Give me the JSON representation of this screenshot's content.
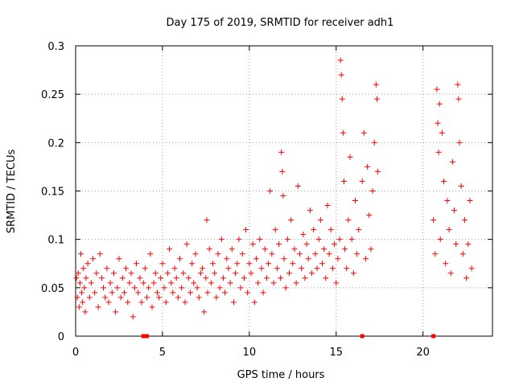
{
  "chart_data": {
    "type": "scatter",
    "title": "Day 175 of 2019, SRMTID for receiver adh1",
    "xlabel": "GPS time / hours",
    "ylabel": "SRMTID / TECUs",
    "xlim": [
      0,
      24
    ],
    "ylim": [
      0,
      0.3
    ],
    "xticks": [
      0,
      5,
      10,
      15,
      20
    ],
    "xtick_labels": [
      "0",
      "5",
      "10",
      "15",
      "20"
    ],
    "yticks": [
      0,
      0.05,
      0.1,
      0.15,
      0.2,
      0.25,
      0.3
    ],
    "ytick_labels": [
      "0",
      "0.05",
      "0.1",
      "0.15",
      "0.2",
      "0.25",
      "0.3"
    ],
    "grid": true,
    "marker": "+",
    "color": "#ff0000",
    "series": [
      {
        "name": "adh1",
        "points": [
          [
            0.05,
            0.06
          ],
          [
            0.1,
            0.04
          ],
          [
            0.15,
            0.065
          ],
          [
            0.2,
            0.03
          ],
          [
            0.25,
            0.055
          ],
          [
            0.3,
            0.085
          ],
          [
            0.35,
            0.045
          ],
          [
            0.4,
            0.035
          ],
          [
            0.45,
            0.07
          ],
          [
            0.5,
            0.05
          ],
          [
            0.55,
            0.025
          ],
          [
            0.6,
            0.06
          ],
          [
            0.7,
            0.075
          ],
          [
            0.8,
            0.04
          ],
          [
            0.9,
            0.055
          ],
          [
            1.0,
            0.08
          ],
          [
            1.1,
            0.045
          ],
          [
            1.2,
            0.065
          ],
          [
            1.3,
            0.03
          ],
          [
            1.4,
            0.085
          ],
          [
            1.5,
            0.06
          ],
          [
            1.6,
            0.05
          ],
          [
            1.7,
            0.04
          ],
          [
            1.8,
            0.07
          ],
          [
            1.9,
            0.035
          ],
          [
            2.0,
            0.055
          ],
          [
            2.1,
            0.045
          ],
          [
            2.2,
            0.065
          ],
          [
            2.3,
            0.025
          ],
          [
            2.4,
            0.05
          ],
          [
            2.5,
            0.08
          ],
          [
            2.6,
            0.04
          ],
          [
            2.7,
            0.06
          ],
          [
            2.8,
            0.045
          ],
          [
            2.9,
            0.07
          ],
          [
            3.0,
            0.035
          ],
          [
            3.1,
            0.055
          ],
          [
            3.2,
            0.065
          ],
          [
            3.3,
            0.02
          ],
          [
            3.4,
            0.05
          ],
          [
            3.5,
            0.075
          ],
          [
            3.6,
            0.045
          ],
          [
            3.7,
            0.06
          ],
          [
            3.8,
            0.035
          ],
          [
            3.9,
            0.055
          ],
          [
            4.0,
            0.07
          ],
          [
            4.1,
            0.04
          ],
          [
            4.2,
            0.05
          ],
          [
            4.3,
            0.085
          ],
          [
            4.4,
            0.03
          ],
          [
            4.5,
            0.055
          ],
          [
            4.6,
            0.065
          ],
          [
            4.7,
            0.045
          ],
          [
            4.8,
            0.04
          ],
          [
            4.9,
            0.06
          ],
          [
            5.0,
            0.075
          ],
          [
            5.1,
            0.05
          ],
          [
            5.2,
            0.035
          ],
          [
            5.3,
            0.065
          ],
          [
            5.4,
            0.09
          ],
          [
            5.5,
            0.055
          ],
          [
            5.6,
            0.045
          ],
          [
            5.7,
            0.07
          ],
          [
            5.8,
            0.06
          ],
          [
            5.9,
            0.04
          ],
          [
            6.0,
            0.08
          ],
          [
            6.1,
            0.05
          ],
          [
            6.2,
            0.065
          ],
          [
            6.3,
            0.035
          ],
          [
            6.4,
            0.095
          ],
          [
            6.5,
            0.06
          ],
          [
            6.6,
            0.045
          ],
          [
            6.7,
            0.075
          ],
          [
            6.8,
            0.055
          ],
          [
            6.9,
            0.085
          ],
          [
            7.0,
            0.05
          ],
          [
            7.1,
            0.04
          ],
          [
            7.2,
            0.065
          ],
          [
            7.3,
            0.07
          ],
          [
            7.4,
            0.025
          ],
          [
            7.5,
            0.06
          ],
          [
            7.55,
            0.12
          ],
          [
            7.6,
            0.045
          ],
          [
            7.7,
            0.09
          ],
          [
            7.8,
            0.055
          ],
          [
            7.9,
            0.075
          ],
          [
            8.0,
            0.065
          ],
          [
            8.1,
            0.04
          ],
          [
            8.2,
            0.085
          ],
          [
            8.3,
            0.05
          ],
          [
            8.4,
            0.1
          ],
          [
            8.5,
            0.06
          ],
          [
            8.6,
            0.045
          ],
          [
            8.7,
            0.08
          ],
          [
            8.8,
            0.07
          ],
          [
            8.9,
            0.055
          ],
          [
            9.0,
            0.09
          ],
          [
            9.1,
            0.035
          ],
          [
            9.2,
            0.065
          ],
          [
            9.3,
            0.075
          ],
          [
            9.4,
            0.1
          ],
          [
            9.5,
            0.05
          ],
          [
            9.6,
            0.085
          ],
          [
            9.7,
            0.06
          ],
          [
            9.8,
            0.11
          ],
          [
            9.9,
            0.045
          ],
          [
            10.0,
            0.075
          ],
          [
            10.1,
            0.065
          ],
          [
            10.2,
            0.095
          ],
          [
            10.3,
            0.035
          ],
          [
            10.4,
            0.08
          ],
          [
            10.5,
            0.055
          ],
          [
            10.6,
            0.1
          ],
          [
            10.7,
            0.07
          ],
          [
            10.8,
            0.045
          ],
          [
            10.9,
            0.09
          ],
          [
            11.0,
            0.06
          ],
          [
            11.1,
            0.075
          ],
          [
            11.2,
            0.15
          ],
          [
            11.3,
            0.085
          ],
          [
            11.4,
            0.055
          ],
          [
            11.5,
            0.11
          ],
          [
            11.6,
            0.07
          ],
          [
            11.7,
            0.095
          ],
          [
            11.8,
            0.06
          ],
          [
            11.85,
            0.19
          ],
          [
            11.9,
            0.17
          ],
          [
            11.95,
            0.145
          ],
          [
            12.0,
            0.08
          ],
          [
            12.1,
            0.05
          ],
          [
            12.2,
            0.1
          ],
          [
            12.3,
            0.065
          ],
          [
            12.4,
            0.12
          ],
          [
            12.5,
            0.075
          ],
          [
            12.6,
            0.09
          ],
          [
            12.7,
            0.055
          ],
          [
            12.8,
            0.155
          ],
          [
            12.9,
            0.085
          ],
          [
            13.0,
            0.07
          ],
          [
            13.1,
            0.105
          ],
          [
            13.2,
            0.06
          ],
          [
            13.3,
            0.095
          ],
          [
            13.4,
            0.08
          ],
          [
            13.5,
            0.13
          ],
          [
            13.6,
            0.065
          ],
          [
            13.7,
            0.11
          ],
          [
            13.8,
            0.085
          ],
          [
            13.9,
            0.07
          ],
          [
            14.0,
            0.1
          ],
          [
            14.1,
            0.12
          ],
          [
            14.2,
            0.075
          ],
          [
            14.3,
            0.09
          ],
          [
            14.4,
            0.06
          ],
          [
            14.5,
            0.135
          ],
          [
            14.6,
            0.085
          ],
          [
            14.7,
            0.11
          ],
          [
            14.8,
            0.07
          ],
          [
            14.9,
            0.095
          ],
          [
            15.0,
            0.055
          ],
          [
            15.1,
            0.08
          ],
          [
            15.2,
            0.1
          ],
          [
            15.25,
            0.285
          ],
          [
            15.3,
            0.27
          ],
          [
            15.35,
            0.245
          ],
          [
            15.4,
            0.21
          ],
          [
            15.45,
            0.16
          ],
          [
            15.5,
            0.09
          ],
          [
            15.6,
            0.07
          ],
          [
            15.7,
            0.12
          ],
          [
            15.8,
            0.185
          ],
          [
            15.9,
            0.1
          ],
          [
            16.0,
            0.065
          ],
          [
            16.1,
            0.14
          ],
          [
            16.2,
            0.085
          ],
          [
            16.3,
            0.11
          ],
          [
            16.5,
            0.16
          ],
          [
            16.6,
            0.21
          ],
          [
            16.7,
            0.08
          ],
          [
            16.8,
            0.175
          ],
          [
            16.9,
            0.125
          ],
          [
            17.0,
            0.09
          ],
          [
            17.1,
            0.15
          ],
          [
            17.2,
            0.2
          ],
          [
            17.3,
            0.26
          ],
          [
            17.35,
            0.245
          ],
          [
            17.4,
            0.17
          ],
          [
            20.6,
            0.12
          ],
          [
            20.7,
            0.085
          ],
          [
            20.8,
            0.255
          ],
          [
            20.85,
            0.22
          ],
          [
            20.9,
            0.19
          ],
          [
            20.95,
            0.24
          ],
          [
            21.0,
            0.1
          ],
          [
            21.1,
            0.21
          ],
          [
            21.2,
            0.16
          ],
          [
            21.3,
            0.075
          ],
          [
            21.4,
            0.14
          ],
          [
            21.5,
            0.11
          ],
          [
            21.6,
            0.065
          ],
          [
            21.7,
            0.18
          ],
          [
            21.8,
            0.13
          ],
          [
            21.9,
            0.095
          ],
          [
            22.0,
            0.26
          ],
          [
            22.05,
            0.245
          ],
          [
            22.1,
            0.2
          ],
          [
            22.2,
            0.155
          ],
          [
            22.3,
            0.085
          ],
          [
            22.4,
            0.12
          ],
          [
            22.5,
            0.06
          ],
          [
            22.6,
            0.095
          ],
          [
            22.7,
            0.14
          ],
          [
            22.8,
            0.07
          ]
        ]
      }
    ],
    "zero_markers_x": [
      3.9,
      4.1,
      16.5,
      20.6
    ]
  }
}
